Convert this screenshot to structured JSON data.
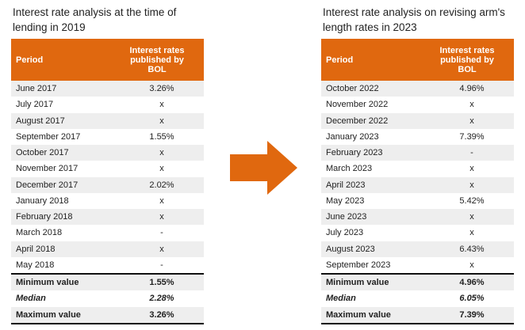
{
  "left_table": {
    "title": "Interest rate analysis at the time of lending in 2019",
    "header": {
      "period": "Period",
      "rate": "Interest rates published by BOL"
    },
    "rows": [
      {
        "period": "June 2017",
        "rate": "3.26%"
      },
      {
        "period": "July 2017",
        "rate": "x"
      },
      {
        "period": "August 2017",
        "rate": "x"
      },
      {
        "period": "September 2017",
        "rate": "1.55%"
      },
      {
        "period": "October 2017",
        "rate": "x"
      },
      {
        "period": "November 2017",
        "rate": "x"
      },
      {
        "period": "December 2017",
        "rate": "2.02%"
      },
      {
        "period": "January 2018",
        "rate": "x"
      },
      {
        "period": "February 2018",
        "rate": "x"
      },
      {
        "period": "March 2018",
        "rate": "-"
      },
      {
        "period": "April 2018",
        "rate": "x"
      },
      {
        "period": "May 2018",
        "rate": "-"
      }
    ],
    "summary": [
      {
        "label": "Minimum value",
        "value": "1.55%"
      },
      {
        "label": "Median",
        "value": "2.28%"
      },
      {
        "label": "Maximum value",
        "value": "3.26%"
      }
    ]
  },
  "right_table": {
    "title": "Interest rate analysis on revising arm's length rates in 2023",
    "header": {
      "period": "Period",
      "rate": "Interest rates published by BOL"
    },
    "rows": [
      {
        "period": "October 2022",
        "rate": "4.96%"
      },
      {
        "period": "November 2022",
        "rate": "x"
      },
      {
        "period": "December 2022",
        "rate": "x"
      },
      {
        "period": "January 2023",
        "rate": "7.39%"
      },
      {
        "period": "February 2023",
        "rate": "-"
      },
      {
        "period": "March 2023",
        "rate": "x"
      },
      {
        "period": "April 2023",
        "rate": "x"
      },
      {
        "period": "May 2023",
        "rate": "5.42%"
      },
      {
        "period": "June 2023",
        "rate": "x"
      },
      {
        "period": "July 2023",
        "rate": "x"
      },
      {
        "period": "August 2023",
        "rate": "6.43%"
      },
      {
        "period": "September 2023",
        "rate": "x"
      }
    ],
    "summary": [
      {
        "label": "Minimum value",
        "value": "4.96%"
      },
      {
        "label": "Median",
        "value": "6.05%"
      },
      {
        "label": "Maximum value",
        "value": "7.39%"
      }
    ]
  },
  "colors": {
    "header_bg": "#e0680f",
    "arrow": "#e0680f",
    "stripe": "#eeeeee"
  },
  "icons": {
    "transition": "right-arrow-icon"
  }
}
